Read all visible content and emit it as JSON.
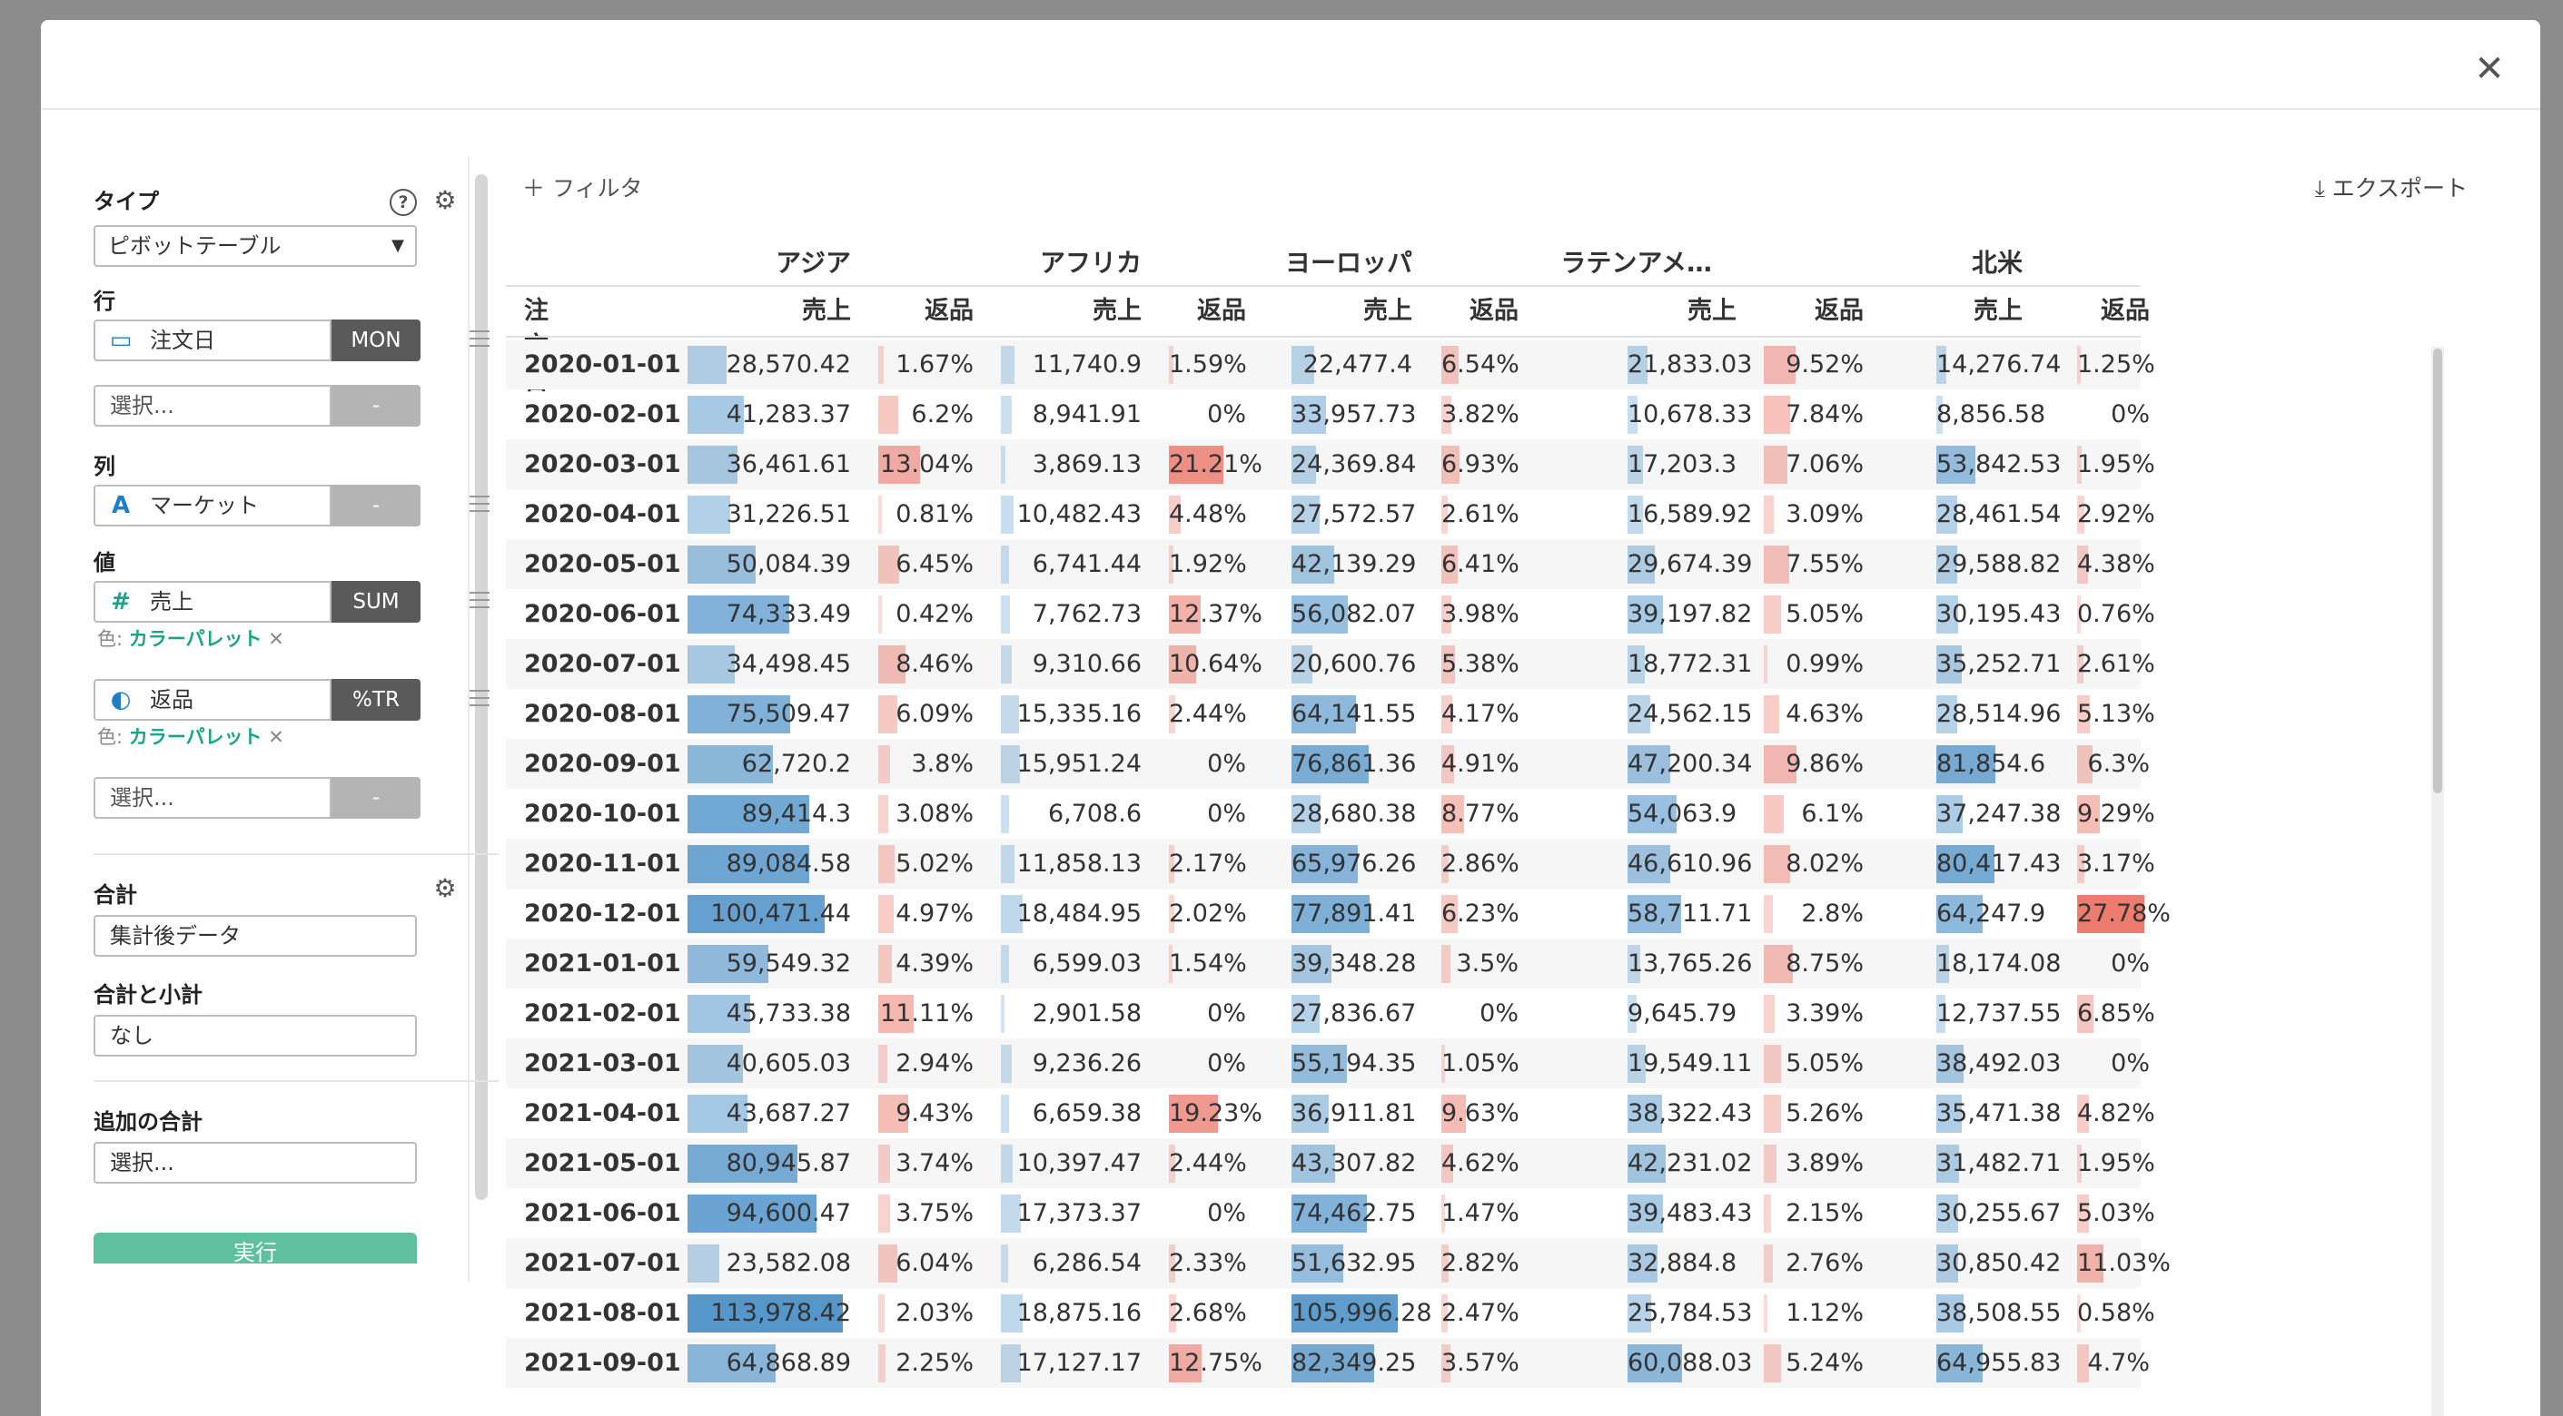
{
  "dialog": {
    "close_icon": "close-icon"
  },
  "sidebar": {
    "type_label": "タイプ",
    "type_value": "ピボットテーブル",
    "row_label": "行",
    "row_field": "注文日",
    "row_tag": "MON",
    "row_select": "選択...",
    "row_select_tag": "-",
    "col_label": "列",
    "col_field": "マーケット",
    "col_tag": "-",
    "val_label": "値",
    "val1_field": "売上",
    "val1_tag": "SUM",
    "val1_color_prefix": "色:",
    "val1_color": "カラーパレット",
    "val2_field": "返品",
    "val2_tag": "%TR",
    "val2_color_prefix": "色:",
    "val2_color": "カラーパレット",
    "val_select": "選択...",
    "val_select_tag": "-",
    "total_label": "合計",
    "total_value": "集計後データ",
    "subtotal_label": "合計と小計",
    "subtotal_value": "なし",
    "extra_label": "追加の合計",
    "extra_value": "選択...",
    "run_label": "実行"
  },
  "toolbar": {
    "filter_label": "フィルタ",
    "export_label": "エクスポート"
  },
  "table": {
    "groups": [
      "アジア",
      "アフリカ",
      "ヨーロッパ",
      "ラテンアメ…",
      "北米"
    ],
    "row_header": "注文日",
    "sales_header": "売上",
    "returns_header": "返品",
    "rows": [
      {
        "date": "2020-01-01",
        "v": [
          "28,570.42",
          "1.67%",
          "11,740.9",
          "1.59%",
          "22,477.4",
          "6.54%",
          "21,833.03",
          "9.52%",
          "14,276.74",
          "1.25%"
        ]
      },
      {
        "date": "2020-02-01",
        "v": [
          "41,283.37",
          "6.2%",
          "8,941.91",
          "0%",
          "33,957.73",
          "3.82%",
          "10,678.33",
          "7.84%",
          "8,856.58",
          "0%"
        ]
      },
      {
        "date": "2020-03-01",
        "v": [
          "36,461.61",
          "13.04%",
          "3,869.13",
          "21.21%",
          "24,369.84",
          "6.93%",
          "17,203.3",
          "7.06%",
          "53,842.53",
          "1.95%"
        ]
      },
      {
        "date": "2020-04-01",
        "v": [
          "31,226.51",
          "0.81%",
          "10,482.43",
          "4.48%",
          "27,572.57",
          "2.61%",
          "16,589.92",
          "3.09%",
          "28,461.54",
          "2.92%"
        ]
      },
      {
        "date": "2020-05-01",
        "v": [
          "50,084.39",
          "6.45%",
          "6,741.44",
          "1.92%",
          "42,139.29",
          "6.41%",
          "29,674.39",
          "7.55%",
          "29,588.82",
          "4.38%"
        ]
      },
      {
        "date": "2020-06-01",
        "v": [
          "74,333.49",
          "0.42%",
          "7,762.73",
          "12.37%",
          "56,082.07",
          "3.98%",
          "39,197.82",
          "5.05%",
          "30,195.43",
          "0.76%"
        ]
      },
      {
        "date": "2020-07-01",
        "v": [
          "34,498.45",
          "8.46%",
          "9,310.66",
          "10.64%",
          "20,600.76",
          "5.38%",
          "18,772.31",
          "0.99%",
          "35,252.71",
          "2.61%"
        ]
      },
      {
        "date": "2020-08-01",
        "v": [
          "75,509.47",
          "6.09%",
          "15,335.16",
          "2.44%",
          "64,141.55",
          "4.17%",
          "24,562.15",
          "4.63%",
          "28,514.96",
          "5.13%"
        ]
      },
      {
        "date": "2020-09-01",
        "v": [
          "62,720.2",
          "3.8%",
          "15,951.24",
          "0%",
          "76,861.36",
          "4.91%",
          "47,200.34",
          "9.86%",
          "81,854.6",
          "6.3%"
        ]
      },
      {
        "date": "2020-10-01",
        "v": [
          "89,414.3",
          "3.08%",
          "6,708.6",
          "0%",
          "28,680.38",
          "8.77%",
          "54,063.9",
          "6.1%",
          "37,247.38",
          "9.29%"
        ]
      },
      {
        "date": "2020-11-01",
        "v": [
          "89,084.58",
          "5.02%",
          "11,858.13",
          "2.17%",
          "65,976.26",
          "2.86%",
          "46,610.96",
          "8.02%",
          "80,417.43",
          "3.17%"
        ]
      },
      {
        "date": "2020-12-01",
        "v": [
          "100,471.44",
          "4.97%",
          "18,484.95",
          "2.02%",
          "77,891.41",
          "6.23%",
          "58,711.71",
          "2.8%",
          "64,247.9",
          "27.78%"
        ]
      },
      {
        "date": "2021-01-01",
        "v": [
          "59,549.32",
          "4.39%",
          "6,599.03",
          "1.54%",
          "39,348.28",
          "3.5%",
          "13,765.26",
          "8.75%",
          "18,174.08",
          "0%"
        ]
      },
      {
        "date": "2021-02-01",
        "v": [
          "45,733.38",
          "11.11%",
          "2,901.58",
          "0%",
          "27,836.67",
          "0%",
          "9,645.79",
          "3.39%",
          "12,737.55",
          "6.85%"
        ]
      },
      {
        "date": "2021-03-01",
        "v": [
          "40,605.03",
          "2.94%",
          "9,236.26",
          "0%",
          "55,194.35",
          "1.05%",
          "19,549.11",
          "5.05%",
          "38,492.03",
          "0%"
        ]
      },
      {
        "date": "2021-04-01",
        "v": [
          "43,687.27",
          "9.43%",
          "6,659.38",
          "19.23%",
          "36,911.81",
          "9.63%",
          "38,322.43",
          "5.26%",
          "35,471.38",
          "4.82%"
        ]
      },
      {
        "date": "2021-05-01",
        "v": [
          "80,945.87",
          "3.74%",
          "10,397.47",
          "2.44%",
          "43,307.82",
          "4.62%",
          "42,231.02",
          "3.89%",
          "31,482.71",
          "1.95%"
        ]
      },
      {
        "date": "2021-06-01",
        "v": [
          "94,600.47",
          "3.75%",
          "17,373.37",
          "0%",
          "74,462.75",
          "1.47%",
          "39,483.43",
          "2.15%",
          "30,255.67",
          "5.03%"
        ]
      },
      {
        "date": "2021-07-01",
        "v": [
          "23,582.08",
          "6.04%",
          "6,286.54",
          "2.33%",
          "51,632.95",
          "2.82%",
          "32,884.8",
          "2.76%",
          "30,850.42",
          "11.03%"
        ]
      },
      {
        "date": "2021-08-01",
        "v": [
          "113,978.42",
          "2.03%",
          "18,875.16",
          "2.68%",
          "105,996.28",
          "2.47%",
          "25,784.53",
          "1.12%",
          "38,508.55",
          "0.58%"
        ]
      },
      {
        "date": "2021-09-01",
        "v": [
          "64,868.89",
          "2.25%",
          "17,127.17",
          "12.75%",
          "82,349.25",
          "3.57%",
          "60,088.03",
          "5.24%",
          "64,955.83",
          "4.7%"
        ]
      }
    ]
  },
  "colors": {
    "sales_bar": "#2f7fbf",
    "returns_bar": "#e85a4a"
  }
}
